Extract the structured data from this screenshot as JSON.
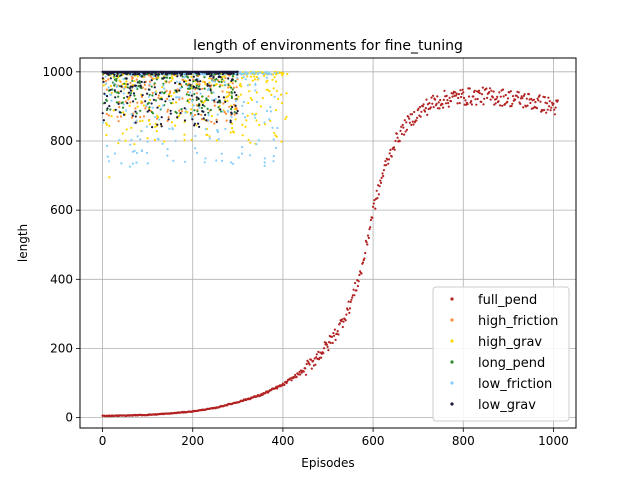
{
  "chart_data": {
    "type": "scatter",
    "title": "length of environments for fine_tuning",
    "xlabel": "Episodes",
    "ylabel": "length",
    "xlim": [
      -50,
      1050
    ],
    "ylim": [
      -30,
      1040
    ],
    "xticks": [
      0,
      200,
      400,
      600,
      800,
      1000
    ],
    "yticks": [
      0,
      200,
      400,
      600,
      800,
      1000
    ],
    "grid": true,
    "legend_position": "lower-right",
    "series": [
      {
        "name": "full_pend",
        "color": "#b22222",
        "description_points": [
          [
            0,
            5
          ],
          [
            50,
            6
          ],
          [
            100,
            8
          ],
          [
            150,
            12
          ],
          [
            200,
            18
          ],
          [
            250,
            28
          ],
          [
            300,
            45
          ],
          [
            350,
            65
          ],
          [
            400,
            95
          ],
          [
            450,
            140
          ],
          [
            500,
            210
          ],
          [
            525,
            260
          ],
          [
            550,
            330
          ],
          [
            575,
            430
          ],
          [
            600,
            600
          ],
          [
            625,
            720
          ],
          [
            650,
            800
          ],
          [
            675,
            850
          ],
          [
            700,
            880
          ],
          [
            725,
            905
          ],
          [
            750,
            918
          ],
          [
            775,
            925
          ],
          [
            800,
            928
          ],
          [
            850,
            930
          ],
          [
            900,
            925
          ],
          [
            950,
            915
          ],
          [
            1000,
            900
          ],
          [
            1010,
            895
          ]
        ]
      },
      {
        "name": "high_friction",
        "color": "#ff8c3a",
        "x_range": [
          0,
          300
        ],
        "y_range": [
          850,
          1000
        ]
      },
      {
        "name": "high_grav",
        "color": "#ffd700",
        "x_range": [
          0,
          410
        ],
        "y_range": [
          790,
          1000
        ],
        "outliers": [
          [
            15,
            695
          ]
        ]
      },
      {
        "name": "long_pend",
        "color": "#2e8b2e",
        "x_range": [
          0,
          300
        ],
        "y_range": [
          880,
          1000
        ]
      },
      {
        "name": "low_friction",
        "color": "#87cefa",
        "x_range": [
          0,
          390
        ],
        "y_range": [
          725,
          1000
        ]
      },
      {
        "name": "low_grav",
        "color": "#1a1a3a",
        "x_range": [
          0,
          300
        ],
        "y_range": [
          840,
          1000
        ]
      }
    ]
  }
}
